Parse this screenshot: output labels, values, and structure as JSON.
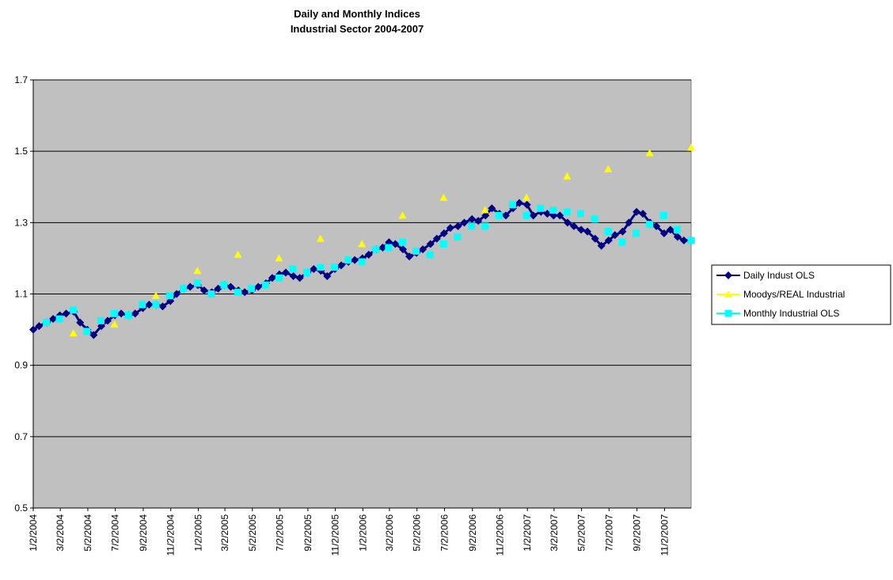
{
  "chart_data": {
    "type": "line",
    "title": "Daily and Monthly Indices",
    "subtitle": "Industrial Sector 2004-2007",
    "xlim": [
      "2004-01-02",
      "2007-12-31"
    ],
    "xticks": [
      {
        "value": "2004-01-02",
        "label": "1/2/2004"
      },
      {
        "value": "2004-03-02",
        "label": "3/2/2004"
      },
      {
        "value": "2004-05-02",
        "label": "5/2/2004"
      },
      {
        "value": "2004-07-02",
        "label": "7/2/2004"
      },
      {
        "value": "2004-09-02",
        "label": "9/2/2004"
      },
      {
        "value": "2004-11-02",
        "label": "11/2/2004"
      },
      {
        "value": "2005-01-02",
        "label": "1/2/2005"
      },
      {
        "value": "2005-03-02",
        "label": "3/2/2005"
      },
      {
        "value": "2005-05-02",
        "label": "5/2/2005"
      },
      {
        "value": "2005-07-02",
        "label": "7/2/2005"
      },
      {
        "value": "2005-09-02",
        "label": "9/2/2005"
      },
      {
        "value": "2005-11-02",
        "label": "11/2/2005"
      },
      {
        "value": "2006-01-02",
        "label": "1/2/2006"
      },
      {
        "value": "2006-03-02",
        "label": "3/2/2006"
      },
      {
        "value": "2006-05-02",
        "label": "5/2/2006"
      },
      {
        "value": "2006-07-02",
        "label": "7/2/2006"
      },
      {
        "value": "2006-09-02",
        "label": "9/2/2006"
      },
      {
        "value": "2006-11-02",
        "label": "11/2/2006"
      },
      {
        "value": "2007-01-02",
        "label": "1/2/2007"
      },
      {
        "value": "2007-03-02",
        "label": "3/2/2007"
      },
      {
        "value": "2007-05-02",
        "label": "5/2/2007"
      },
      {
        "value": "2007-07-02",
        "label": "7/2/2007"
      },
      {
        "value": "2007-09-02",
        "label": "9/2/2007"
      },
      {
        "value": "2007-11-02",
        "label": "11/2/2007"
      }
    ],
    "ylim": [
      0.5,
      1.7
    ],
    "yticks": [
      0.5,
      0.7,
      0.9,
      1.1,
      1.3,
      1.5,
      1.7
    ],
    "grid": true,
    "legend": "right",
    "series": [
      {
        "name": "Daily Indust OLS",
        "color": "#000080",
        "marker": "diamond",
        "line": true,
        "x": [
          "2004-01-02",
          "2004-01-15",
          "2004-02-01",
          "2004-02-15",
          "2004-03-01",
          "2004-03-15",
          "2004-04-01",
          "2004-04-15",
          "2004-05-01",
          "2004-05-15",
          "2004-06-01",
          "2004-06-15",
          "2004-07-01",
          "2004-07-15",
          "2004-08-01",
          "2004-08-15",
          "2004-09-01",
          "2004-09-15",
          "2004-10-01",
          "2004-10-15",
          "2004-11-01",
          "2004-11-15",
          "2004-12-01",
          "2004-12-15",
          "2005-01-01",
          "2005-01-15",
          "2005-02-01",
          "2005-02-15",
          "2005-03-01",
          "2005-03-15",
          "2005-04-01",
          "2005-04-15",
          "2005-05-01",
          "2005-05-15",
          "2005-06-01",
          "2005-06-15",
          "2005-07-01",
          "2005-07-15",
          "2005-08-01",
          "2005-08-15",
          "2005-09-01",
          "2005-09-15",
          "2005-10-01",
          "2005-10-15",
          "2005-11-01",
          "2005-11-15",
          "2005-12-01",
          "2005-12-15",
          "2006-01-01",
          "2006-01-15",
          "2006-02-01",
          "2006-02-15",
          "2006-03-01",
          "2006-03-15",
          "2006-04-01",
          "2006-04-15",
          "2006-05-01",
          "2006-05-15",
          "2006-06-01",
          "2006-06-15",
          "2006-07-01",
          "2006-07-15",
          "2006-08-01",
          "2006-08-15",
          "2006-09-01",
          "2006-09-15",
          "2006-10-01",
          "2006-10-15",
          "2006-11-01",
          "2006-11-15",
          "2006-12-01",
          "2006-12-15",
          "2007-01-01",
          "2007-01-15",
          "2007-02-01",
          "2007-02-15",
          "2007-03-01",
          "2007-03-15",
          "2007-04-01",
          "2007-04-15",
          "2007-05-01",
          "2007-05-15",
          "2007-06-01",
          "2007-06-15",
          "2007-07-01",
          "2007-07-15",
          "2007-08-01",
          "2007-08-15",
          "2007-09-01",
          "2007-09-15",
          "2007-10-01",
          "2007-10-15",
          "2007-11-01",
          "2007-11-15",
          "2007-12-01",
          "2007-12-15",
          "2007-12-31"
        ],
        "values": [
          1.0,
          1.01,
          1.02,
          1.03,
          1.04,
          1.045,
          1.05,
          1.02,
          1.0,
          0.985,
          1.01,
          1.025,
          1.04,
          1.045,
          1.04,
          1.045,
          1.06,
          1.07,
          1.07,
          1.065,
          1.08,
          1.1,
          1.115,
          1.12,
          1.125,
          1.11,
          1.105,
          1.115,
          1.125,
          1.12,
          1.11,
          1.105,
          1.11,
          1.12,
          1.13,
          1.145,
          1.155,
          1.16,
          1.15,
          1.145,
          1.16,
          1.17,
          1.165,
          1.15,
          1.17,
          1.18,
          1.19,
          1.195,
          1.2,
          1.21,
          1.225,
          1.23,
          1.245,
          1.24,
          1.225,
          1.205,
          1.215,
          1.225,
          1.24,
          1.255,
          1.27,
          1.285,
          1.29,
          1.3,
          1.31,
          1.305,
          1.32,
          1.34,
          1.325,
          1.32,
          1.34,
          1.355,
          1.35,
          1.32,
          1.33,
          1.325,
          1.32,
          1.32,
          1.3,
          1.29,
          1.28,
          1.275,
          1.255,
          1.235,
          1.25,
          1.265,
          1.275,
          1.3,
          1.33,
          1.325,
          1.3,
          1.29,
          1.27,
          1.28,
          1.26,
          1.25,
          1.25
        ]
      },
      {
        "name": "Moodys/REAL Industrial",
        "color": "#ffff00",
        "marker": "triangle",
        "line": false,
        "x": [
          "2004-03-31",
          "2004-06-30",
          "2004-09-30",
          "2004-12-31",
          "2005-03-31",
          "2005-06-30",
          "2005-09-30",
          "2005-12-31",
          "2006-03-31",
          "2006-06-30",
          "2006-09-30",
          "2006-12-31",
          "2007-03-31",
          "2007-06-30",
          "2007-09-30",
          "2007-12-31"
        ],
        "values": [
          0.99,
          1.015,
          1.095,
          1.165,
          1.21,
          1.2,
          1.255,
          1.24,
          1.32,
          1.37,
          1.335,
          1.37,
          1.43,
          1.45,
          1.495,
          1.51
        ]
      },
      {
        "name": "Monthly Industrial OLS",
        "color": "#00ffff",
        "marker": "square",
        "line": false,
        "x": [
          "2004-01-31",
          "2004-02-29",
          "2004-03-31",
          "2004-04-30",
          "2004-05-31",
          "2004-06-30",
          "2004-07-31",
          "2004-08-31",
          "2004-09-30",
          "2004-10-31",
          "2004-11-30",
          "2004-12-31",
          "2005-01-31",
          "2005-02-28",
          "2005-03-31",
          "2005-04-30",
          "2005-05-31",
          "2005-06-30",
          "2005-07-31",
          "2005-08-31",
          "2005-09-30",
          "2005-10-31",
          "2005-11-30",
          "2005-12-31",
          "2006-01-31",
          "2006-02-28",
          "2006-03-31",
          "2006-04-30",
          "2006-05-31",
          "2006-06-30",
          "2006-07-31",
          "2006-08-31",
          "2006-09-30",
          "2006-10-31",
          "2006-11-30",
          "2006-12-31",
          "2007-01-31",
          "2007-02-28",
          "2007-03-31",
          "2007-04-30",
          "2007-05-31",
          "2007-06-30",
          "2007-07-31",
          "2007-08-31",
          "2007-09-30",
          "2007-10-31",
          "2007-11-30",
          "2007-12-31"
        ],
        "values": [
          1.02,
          1.03,
          1.055,
          0.995,
          1.025,
          1.045,
          1.04,
          1.07,
          1.07,
          1.095,
          1.115,
          1.13,
          1.1,
          1.125,
          1.105,
          1.115,
          1.125,
          1.145,
          1.17,
          1.16,
          1.175,
          1.175,
          1.195,
          1.19,
          1.225,
          1.23,
          1.245,
          1.22,
          1.21,
          1.24,
          1.26,
          1.29,
          1.29,
          1.32,
          1.35,
          1.32,
          1.34,
          1.335,
          1.33,
          1.325,
          1.31,
          1.275,
          1.245,
          1.27,
          1.295,
          1.32,
          1.28,
          1.25
        ]
      }
    ]
  }
}
